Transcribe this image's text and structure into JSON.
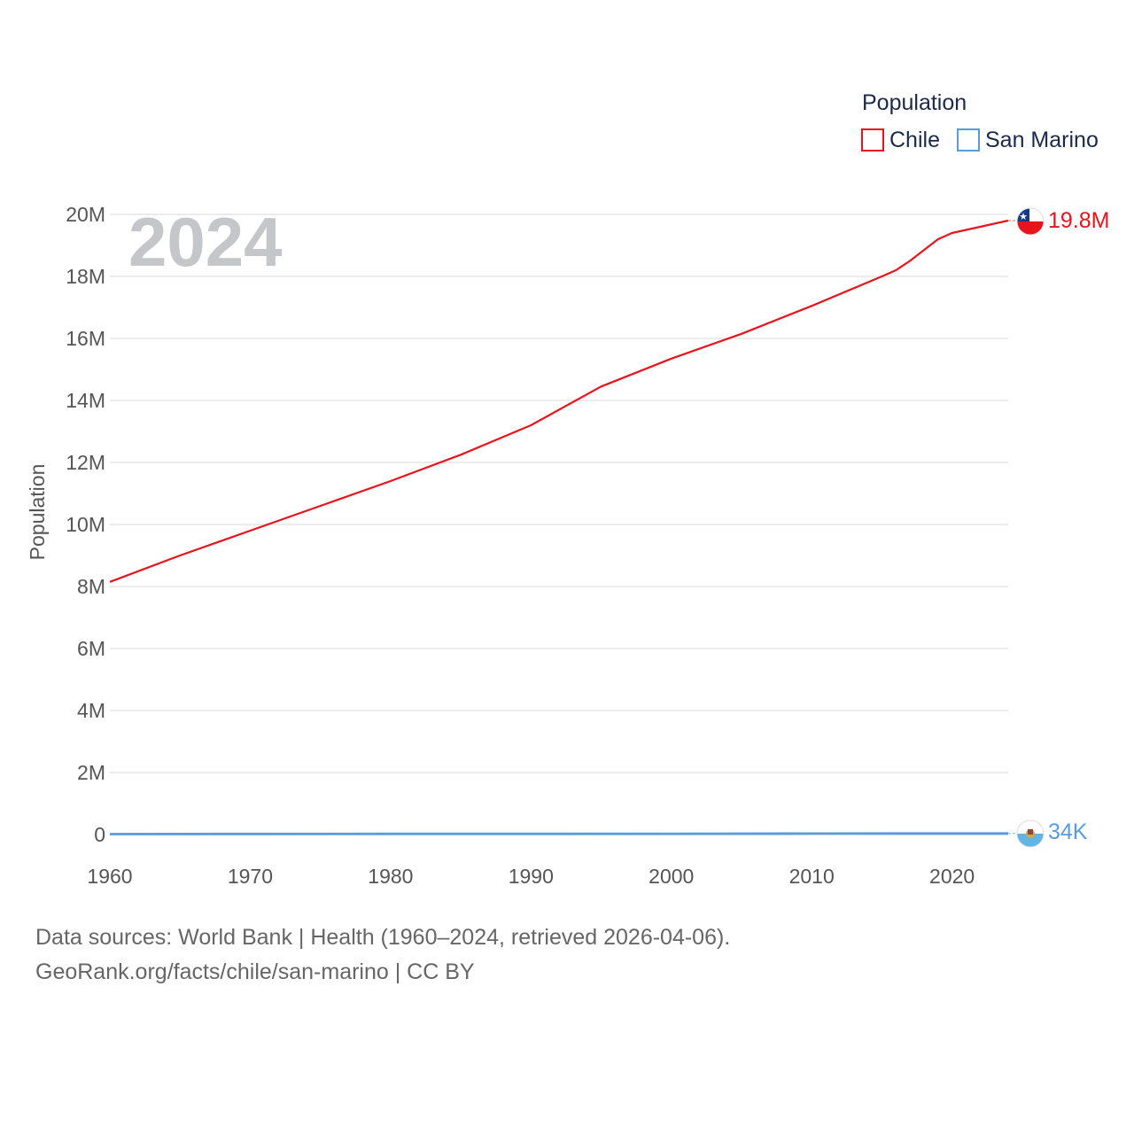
{
  "chart_data": {
    "type": "line",
    "year_label": "2024",
    "ylabel": "Population",
    "legend_title": "Population",
    "xlim": [
      1960,
      2024
    ],
    "ylim": [
      0,
      20000000
    ],
    "x_ticks": [
      {
        "value": 1960,
        "label": "1960"
      },
      {
        "value": 1970,
        "label": "1970"
      },
      {
        "value": 1980,
        "label": "1980"
      },
      {
        "value": 1990,
        "label": "1990"
      },
      {
        "value": 2000,
        "label": "2000"
      },
      {
        "value": 2010,
        "label": "2010"
      },
      {
        "value": 2020,
        "label": "2020"
      }
    ],
    "y_ticks": [
      {
        "value": 0,
        "label": "0"
      },
      {
        "value": 2000000,
        "label": "2M"
      },
      {
        "value": 4000000,
        "label": "4M"
      },
      {
        "value": 6000000,
        "label": "6M"
      },
      {
        "value": 8000000,
        "label": "8M"
      },
      {
        "value": 10000000,
        "label": "10M"
      },
      {
        "value": 12000000,
        "label": "12M"
      },
      {
        "value": 14000000,
        "label": "14M"
      },
      {
        "value": 16000000,
        "label": "16M"
      },
      {
        "value": 18000000,
        "label": "18M"
      },
      {
        "value": 20000000,
        "label": "20M"
      }
    ],
    "series": [
      {
        "name": "Chile",
        "color": "#e8141c",
        "end_label": "19.8M",
        "icon": "chile-flag-icon",
        "points": [
          [
            1960,
            8150000
          ],
          [
            1965,
            9000000
          ],
          [
            1970,
            9800000
          ],
          [
            1975,
            10600000
          ],
          [
            1980,
            11400000
          ],
          [
            1985,
            12250000
          ],
          [
            1990,
            13200000
          ],
          [
            1995,
            14450000
          ],
          [
            2000,
            15350000
          ],
          [
            2005,
            16150000
          ],
          [
            2010,
            17050000
          ],
          [
            2015,
            18000000
          ],
          [
            2016,
            18200000
          ],
          [
            2017,
            18500000
          ],
          [
            2018,
            18850000
          ],
          [
            2019,
            19200000
          ],
          [
            2020,
            19400000
          ],
          [
            2022,
            19600000
          ],
          [
            2024,
            19800000
          ]
        ]
      },
      {
        "name": "San Marino",
        "color": "#5a9bdd",
        "end_label": "34K",
        "icon": "san-marino-flag-icon",
        "points": [
          [
            1960,
            15000
          ],
          [
            1970,
            19000
          ],
          [
            1980,
            21500
          ],
          [
            1990,
            23500
          ],
          [
            2000,
            27000
          ],
          [
            2010,
            31500
          ],
          [
            2020,
            34000
          ],
          [
            2024,
            34000
          ]
        ]
      }
    ]
  },
  "footer": {
    "line1": "Data sources: World Bank | Health (1960–2024, retrieved 2026-04-06).",
    "line2": "GeoRank.org/facts/chile/san-marino | CC BY"
  }
}
